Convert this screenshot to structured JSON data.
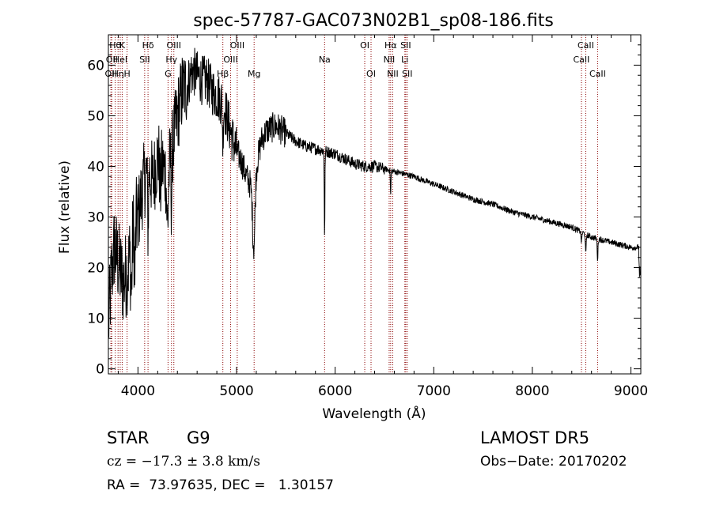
{
  "chart_data": {
    "type": "line",
    "title": "spec-57787-GAC073N02B1_sp08-186.fits",
    "xlabel": "Wavelength (Å)",
    "ylabel": "Flux (relative)",
    "xlim": [
      3700,
      9100
    ],
    "ylim": [
      -1,
      66
    ],
    "xticks": [
      4000,
      5000,
      6000,
      7000,
      8000,
      9000
    ],
    "yticks": [
      0,
      10,
      20,
      30,
      40,
      50,
      60
    ],
    "xticklabels": [
      "4000",
      "5000",
      "6000",
      "7000",
      "8000",
      "9000"
    ],
    "yticklabels": [
      "0",
      "10",
      "20",
      "30",
      "40",
      "50",
      "60"
    ],
    "line_color": "#000000",
    "marker_color": "#8b0000",
    "grid": false,
    "continuum": [
      [
        3700,
        8
      ],
      [
        3730,
        18
      ],
      [
        3760,
        24
      ],
      [
        3800,
        21
      ],
      [
        3850,
        17
      ],
      [
        3900,
        20
      ],
      [
        3950,
        27
      ],
      [
        4000,
        30
      ],
      [
        4050,
        36
      ],
      [
        4100,
        40
      ],
      [
        4150,
        37
      ],
      [
        4200,
        42
      ],
      [
        4250,
        40
      ],
      [
        4300,
        38
      ],
      [
        4350,
        44
      ],
      [
        4400,
        50
      ],
      [
        4450,
        55
      ],
      [
        4500,
        56
      ],
      [
        4550,
        59
      ],
      [
        4600,
        58
      ],
      [
        4650,
        57
      ],
      [
        4700,
        57
      ],
      [
        4750,
        55
      ],
      [
        4800,
        54
      ],
      [
        4850,
        53
      ],
      [
        4900,
        50
      ],
      [
        4950,
        46
      ],
      [
        5000,
        43
      ],
      [
        5050,
        41
      ],
      [
        5100,
        38
      ],
      [
        5150,
        36
      ],
      [
        5200,
        40
      ],
      [
        5250,
        45
      ],
      [
        5300,
        47
      ],
      [
        5400,
        48
      ],
      [
        5500,
        46.5
      ],
      [
        5600,
        45
      ],
      [
        5700,
        44
      ],
      [
        5800,
        43.5
      ],
      [
        5900,
        43
      ],
      [
        6000,
        42.5
      ],
      [
        6100,
        41.5
      ],
      [
        6200,
        40.5
      ],
      [
        6300,
        40
      ],
      [
        6400,
        40
      ],
      [
        6500,
        39.5
      ],
      [
        6600,
        39
      ],
      [
        6700,
        38.5
      ],
      [
        6800,
        38
      ],
      [
        6900,
        37.2
      ],
      [
        7000,
        36.5
      ],
      [
        7200,
        35
      ],
      [
        7400,
        33.5
      ],
      [
        7600,
        32.5
      ],
      [
        7800,
        31
      ],
      [
        8000,
        30
      ],
      [
        8200,
        29
      ],
      [
        8400,
        28
      ],
      [
        8500,
        27
      ],
      [
        8600,
        26
      ],
      [
        8800,
        25
      ],
      [
        9000,
        24
      ],
      [
        9050,
        24
      ],
      [
        9100,
        24
      ]
    ],
    "absorption_features": [
      [
        3933,
        6,
        10
      ],
      [
        3968,
        5,
        10
      ],
      [
        4102,
        5,
        12
      ],
      [
        4227,
        6,
        6
      ],
      [
        4300,
        8,
        10
      ],
      [
        4340,
        4,
        10
      ],
      [
        4861,
        4,
        8
      ],
      [
        5175,
        12,
        14
      ],
      [
        5893,
        3,
        17
      ],
      [
        6563,
        3,
        5
      ],
      [
        8498,
        4,
        2
      ],
      [
        8542,
        4,
        4
      ],
      [
        8662,
        4,
        4
      ]
    ],
    "line_markers": [
      {
        "wavelength": 3770,
        "label": "Hθ",
        "row": 0
      },
      {
        "wavelength": 3735,
        "label": "OII",
        "row": 1
      },
      {
        "wavelength": 3725,
        "label": "OII",
        "row": 2
      },
      {
        "wavelength": 3798,
        "label": "Hη",
        "row": 2
      },
      {
        "wavelength": 3820,
        "label": "HeI",
        "row": 1
      },
      {
        "wavelength": 3840,
        "label": "K",
        "row": 0
      },
      {
        "wavelength": 3890,
        "label": "H",
        "row": 2
      },
      {
        "wavelength": 4068,
        "label": "SII",
        "row": 1
      },
      {
        "wavelength": 4102,
        "label": "Hδ",
        "row": 0
      },
      {
        "wavelength": 4305,
        "label": "G",
        "row": 2
      },
      {
        "wavelength": 4340,
        "label": "Hγ",
        "row": 1
      },
      {
        "wavelength": 4364,
        "label": "OIII",
        "row": 0
      },
      {
        "wavelength": 4861,
        "label": "Hβ",
        "row": 2
      },
      {
        "wavelength": 4940,
        "label": "OIII",
        "row": 1
      },
      {
        "wavelength": 5007,
        "label": "OIII",
        "row": 0
      },
      {
        "wavelength": 5178,
        "label": "Mg",
        "row": 2
      },
      {
        "wavelength": 5893,
        "label": "Na",
        "row": 1
      },
      {
        "wavelength": 6300,
        "label": "OI",
        "row": 0
      },
      {
        "wavelength": 6364,
        "label": "OI",
        "row": 2
      },
      {
        "wavelength": 6548,
        "label": "NII",
        "row": 1
      },
      {
        "wavelength": 6563,
        "label": "Hα",
        "row": 0
      },
      {
        "wavelength": 6584,
        "label": "NII",
        "row": 2
      },
      {
        "wavelength": 6707,
        "label": "Li",
        "row": 1
      },
      {
        "wavelength": 6716,
        "label": "SII",
        "row": 0
      },
      {
        "wavelength": 6731,
        "label": "SII",
        "row": 2
      },
      {
        "wavelength": 8498,
        "label": "CaII",
        "row": 1
      },
      {
        "wavelength": 8542,
        "label": "CaII",
        "row": 0
      },
      {
        "wavelength": 8662,
        "label": "CaII",
        "row": 2
      }
    ]
  },
  "info": {
    "class": "STAR",
    "subclass": "G9",
    "survey": "LAMOST DR5",
    "velocity": "cz = −17.3 ± 3.8 km/s",
    "obs_date": "Obs−Date: 20170202",
    "coords": "RA =  73.97635, DEC =   1.30157"
  }
}
